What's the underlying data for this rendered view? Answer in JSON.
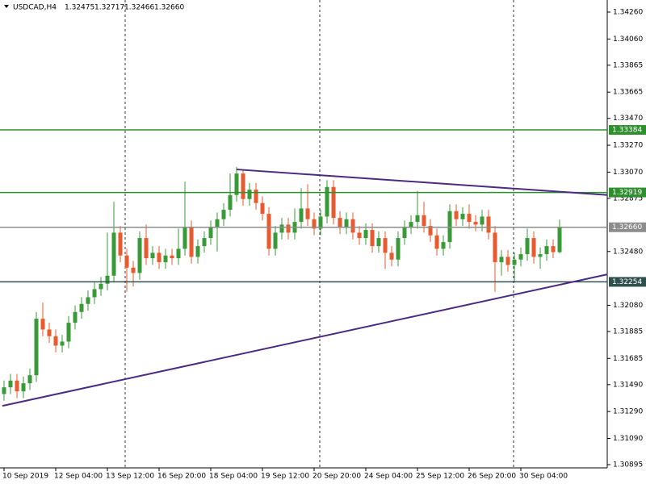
{
  "chart_data": {
    "type": "candlestick",
    "header": {
      "symbol": "USDCAD,H4",
      "ohlc": [
        "1.32475",
        "1.32717",
        "1.32466",
        "1.32660"
      ]
    },
    "ylim": [
      1.30871,
      1.3435
    ],
    "yticks": [
      {
        "value": 1.3426,
        "label": "1.34260"
      },
      {
        "value": 1.3406,
        "label": "1.34060"
      },
      1.33865,
      1.33665,
      {
        "value": 1.3347,
        "label": "1.33470"
      },
      {
        "value": 1.3327,
        "label": "1.33270"
      },
      {
        "value": 1.3307,
        "label": "1.33070"
      },
      1.32875,
      {
        "value": 1.3248,
        "label": "1.32480"
      },
      {
        "value": 1.3208,
        "label": "1.32080"
      },
      1.31885,
      1.31685,
      {
        "value": 1.3149,
        "label": "1.31490"
      },
      {
        "value": 1.3129,
        "label": "1.31290"
      },
      {
        "value": 1.3109,
        "label": "1.31090"
      },
      1.30895
    ],
    "xlabels": [
      {
        "index": 0,
        "label": "10 Sep 2019"
      },
      {
        "index": 8,
        "label": "12 Sep 04:00"
      },
      {
        "index": 16,
        "label": "13 Sep 12:00"
      },
      {
        "index": 24,
        "label": "16 Sep 20:00"
      },
      {
        "index": 32,
        "label": "18 Sep 04:00"
      },
      {
        "index": 40,
        "label": "19 Sep 12:00"
      },
      {
        "index": 48,
        "label": "20 Sep 20:00"
      },
      {
        "index": 56,
        "label": "24 Sep 04:00"
      },
      {
        "index": 64,
        "label": "25 Sep 12:00"
      },
      {
        "index": 72,
        "label": "26 Sep 20:00"
      },
      {
        "index": 80,
        "label": "30 Sep 04:00"
      }
    ],
    "bull_color": "#3a9a3a",
    "bear_color": "#ea5a2e",
    "ohlc": {
      "open": [
        1.3142,
        1.3147,
        1.3152,
        1.3144,
        1.315,
        1.3156,
        1.3198,
        1.319,
        1.3185,
        1.3178,
        1.3181,
        1.3195,
        1.3203,
        1.3209,
        1.3214,
        1.322,
        1.3224,
        1.323,
        1.3262,
        1.3245,
        1.3236,
        1.3232,
        1.3258,
        1.3243,
        1.3247,
        1.324,
        1.3245,
        1.3243,
        1.325,
        1.3266,
        1.3244,
        1.3252,
        1.3258,
        1.3266,
        1.3272,
        1.3279,
        1.329,
        1.3306,
        1.3287,
        1.3294,
        1.3284,
        1.3276,
        1.325,
        1.3262,
        1.3268,
        1.3262,
        1.327,
        1.328,
        1.3272,
        1.3265,
        1.3274,
        1.3296,
        1.3273,
        1.3266,
        1.3272,
        1.3262,
        1.3258,
        1.3264,
        1.3252,
        1.3258,
        1.3247,
        1.3242,
        1.3258,
        1.3266,
        1.327,
        1.3275,
        1.3267,
        1.326,
        1.325,
        1.3255,
        1.3278,
        1.3272,
        1.3276,
        1.327,
        1.3268,
        1.3274,
        1.3262,
        1.324,
        1.3244,
        1.3238,
        1.3242,
        1.3246,
        1.3258,
        1.3244,
        1.3246,
        1.3252,
        1.32475
      ],
      "high": [
        1.3152,
        1.3157,
        1.3157,
        1.3155,
        1.3161,
        1.3203,
        1.321,
        1.3195,
        1.319,
        1.3186,
        1.32,
        1.3208,
        1.3214,
        1.3219,
        1.3225,
        1.3229,
        1.3262,
        1.3285,
        1.3267,
        1.325,
        1.3241,
        1.3263,
        1.3268,
        1.3252,
        1.3252,
        1.325,
        1.325,
        1.3265,
        1.33,
        1.3271,
        1.3257,
        1.3263,
        1.3271,
        1.3277,
        1.3284,
        1.3306,
        1.3311,
        1.3309,
        1.3299,
        1.3299,
        1.3289,
        1.3281,
        1.3267,
        1.3273,
        1.3273,
        1.328,
        1.3295,
        1.3298,
        1.3277,
        1.3279,
        1.3301,
        1.3301,
        1.3278,
        1.3277,
        1.3277,
        1.3267,
        1.3269,
        1.3269,
        1.3263,
        1.3263,
        1.3252,
        1.3263,
        1.3271,
        1.3275,
        1.3293,
        1.3285,
        1.3272,
        1.3265,
        1.326,
        1.3283,
        1.3283,
        1.3281,
        1.3283,
        1.3275,
        1.3279,
        1.3279,
        1.3267,
        1.3249,
        1.3249,
        1.3247,
        1.3251,
        1.3265,
        1.3263,
        1.3251,
        1.3257,
        1.3257,
        1.32717
      ],
      "low": [
        1.3137,
        1.3142,
        1.3139,
        1.3139,
        1.3145,
        1.3151,
        1.3185,
        1.318,
        1.3173,
        1.3173,
        1.3176,
        1.319,
        1.3198,
        1.3204,
        1.3209,
        1.3215,
        1.3219,
        1.3225,
        1.324,
        1.3218,
        1.3222,
        1.3227,
        1.3238,
        1.3238,
        1.3235,
        1.3235,
        1.3238,
        1.3238,
        1.3245,
        1.3239,
        1.3239,
        1.3247,
        1.3253,
        1.3248,
        1.3267,
        1.3274,
        1.3285,
        1.3282,
        1.3282,
        1.3279,
        1.3271,
        1.3245,
        1.3245,
        1.3257,
        1.3257,
        1.3257,
        1.3265,
        1.3267,
        1.326,
        1.326,
        1.3269,
        1.3268,
        1.3261,
        1.3261,
        1.3257,
        1.3253,
        1.3253,
        1.3247,
        1.3247,
        1.3235,
        1.3237,
        1.3237,
        1.3253,
        1.3261,
        1.3265,
        1.3262,
        1.3255,
        1.3245,
        1.3245,
        1.325,
        1.3267,
        1.3267,
        1.3265,
        1.3263,
        1.3263,
        1.3257,
        1.3218,
        1.323,
        1.3233,
        1.3225,
        1.3237,
        1.3241,
        1.3239,
        1.3235,
        1.3241,
        1.3243,
        1.32466
      ],
      "close": [
        1.3147,
        1.3152,
        1.3144,
        1.315,
        1.3156,
        1.3198,
        1.319,
        1.3185,
        1.3178,
        1.3181,
        1.3195,
        1.3203,
        1.3209,
        1.3214,
        1.322,
        1.3224,
        1.323,
        1.3262,
        1.3245,
        1.3236,
        1.3232,
        1.3258,
        1.3243,
        1.3247,
        1.324,
        1.3245,
        1.3243,
        1.325,
        1.3266,
        1.3244,
        1.3252,
        1.3258,
        1.3266,
        1.3272,
        1.3279,
        1.329,
        1.3306,
        1.3287,
        1.3294,
        1.3284,
        1.3276,
        1.325,
        1.3262,
        1.3268,
        1.3262,
        1.327,
        1.328,
        1.3272,
        1.3265,
        1.3274,
        1.3296,
        1.3273,
        1.3266,
        1.3272,
        1.3262,
        1.3258,
        1.3264,
        1.3252,
        1.3258,
        1.3247,
        1.3242,
        1.3258,
        1.3266,
        1.327,
        1.3275,
        1.3267,
        1.326,
        1.325,
        1.3255,
        1.3278,
        1.3272,
        1.3276,
        1.327,
        1.3268,
        1.3274,
        1.3262,
        1.324,
        1.3244,
        1.3238,
        1.3242,
        1.3246,
        1.3258,
        1.3244,
        1.3246,
        1.3252,
        1.32475,
        1.3266
      ]
    },
    "levels": [
      {
        "value": 1.33384,
        "label": "1.33384",
        "color": "#2f8f2f"
      },
      {
        "value": 1.32919,
        "label": "1.32919",
        "color": "#2f8f2f"
      },
      {
        "value": 1.3266,
        "label": "1.32660",
        "color": "#8c8c8c"
      },
      {
        "value": 1.32254,
        "label": "1.32254",
        "color": "#2f4f4f"
      }
    ],
    "trendlines": [
      {
        "x": [
          36,
          93.4
        ],
        "y": [
          1.3309,
          1.329
        ],
        "color": "#4b2a82"
      },
      {
        "x": [
          -0.25,
          93.4
        ],
        "y": [
          1.31332,
          1.3231
        ],
        "color": "#4b2a82"
      }
    ]
  }
}
